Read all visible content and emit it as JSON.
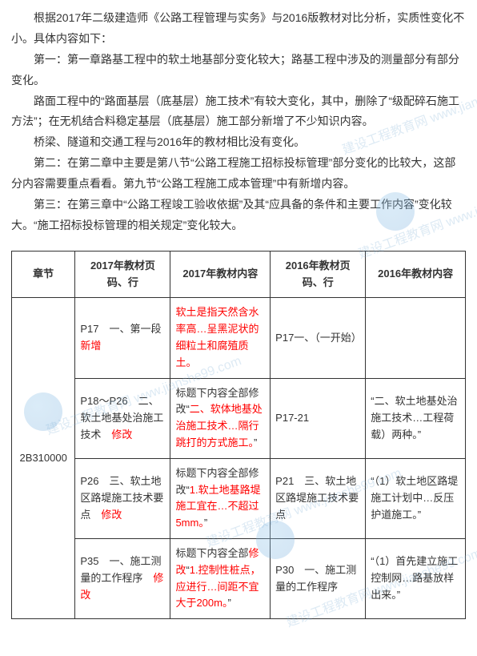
{
  "text": {
    "p1": "根据2017年二级建造师《公路工程管理与实务》与2016版教材对比分析，实质性变化不小。具体内容如下：",
    "p2": "第一：第一章路基工程中的软土地基部分变化较大；路基工程中涉及的测量部分有部分变化。",
    "p3a": "路面工程中的“路面基层（底基层）施工技术”有较大变化，其中，删除了“级配碎石施工方法”；在无机结合料稳定基层（底基层）施工部分新增了不少知识内容。",
    "p4": "桥梁、隧道和交通工程与2016年的教材相比没有变化。",
    "p5": "第二：在第二章中主要是第八节“公路工程施工招标投标管理”部分变化的比较大，这部分内容需要重点看看。第九节“公路工程施工成本管理”中有新增内容。",
    "p6": "第三：在第三章中“公路工程竣工验收依据”及其“应具备的条件和主要工作内容”变化较大。“施工招标投标管理的相关规定”变化较大。"
  },
  "table": {
    "headers": {
      "h1": "章节",
      "h2": "2017年教材页码、行",
      "h3": "2017年教材内容",
      "h4": "2016年教材页码、行",
      "h5": "2016年教材内容"
    },
    "chapter": "2B310000",
    "rows": {
      "r1": {
        "c2a": "P17　一、第一段",
        "c2b": "新增",
        "c3": "软土是指天然含水率高…呈黑泥状的细粒土和腐殖质土。",
        "c4": "P17一、（一开始）",
        "c5": ""
      },
      "r2": {
        "c2a": "P18～P26　二、软土地基处治施工技术　",
        "c2b": "修改",
        "c3a": "标题下内容全部修改“",
        "c3b": "二、软体地基处治施工技术…隔行跳打的方式施工。",
        "c3c": "”",
        "c4": "P17-21",
        "c5": "“二、软土地基处治施工技术…工程荷载）两种。”"
      },
      "r3": {
        "c2a": "P26　三、软土地区路堤施工技术要点　",
        "c2b": "修改",
        "c3a": "标题下内容全部修改“",
        "c3b": "1.软土地基路堤施工宜在…不超过5mm。",
        "c3c": "”",
        "c4": "P21　三、软土地区路堤施工技术要点",
        "c5": "“（1）软土地区路堤施工计划中…反压护道施工。”"
      },
      "r4": {
        "c2a": "P35　一、施工测量的工作程序　",
        "c2b": "修改",
        "c3a": "标题下内容全部",
        "c3b": "修改",
        "c3c": "“",
        "c3d": "1.控制性桩点，应进行…间距不宜大于200m。",
        "c3e": "”",
        "c4": "P30　一、施工测量的工作程序",
        "c5": "“（1）首先建立施工控制网…路基放样出来。”"
      }
    }
  },
  "watermark": {
    "text": "建设工程教育网 www.jianshe99.com"
  }
}
